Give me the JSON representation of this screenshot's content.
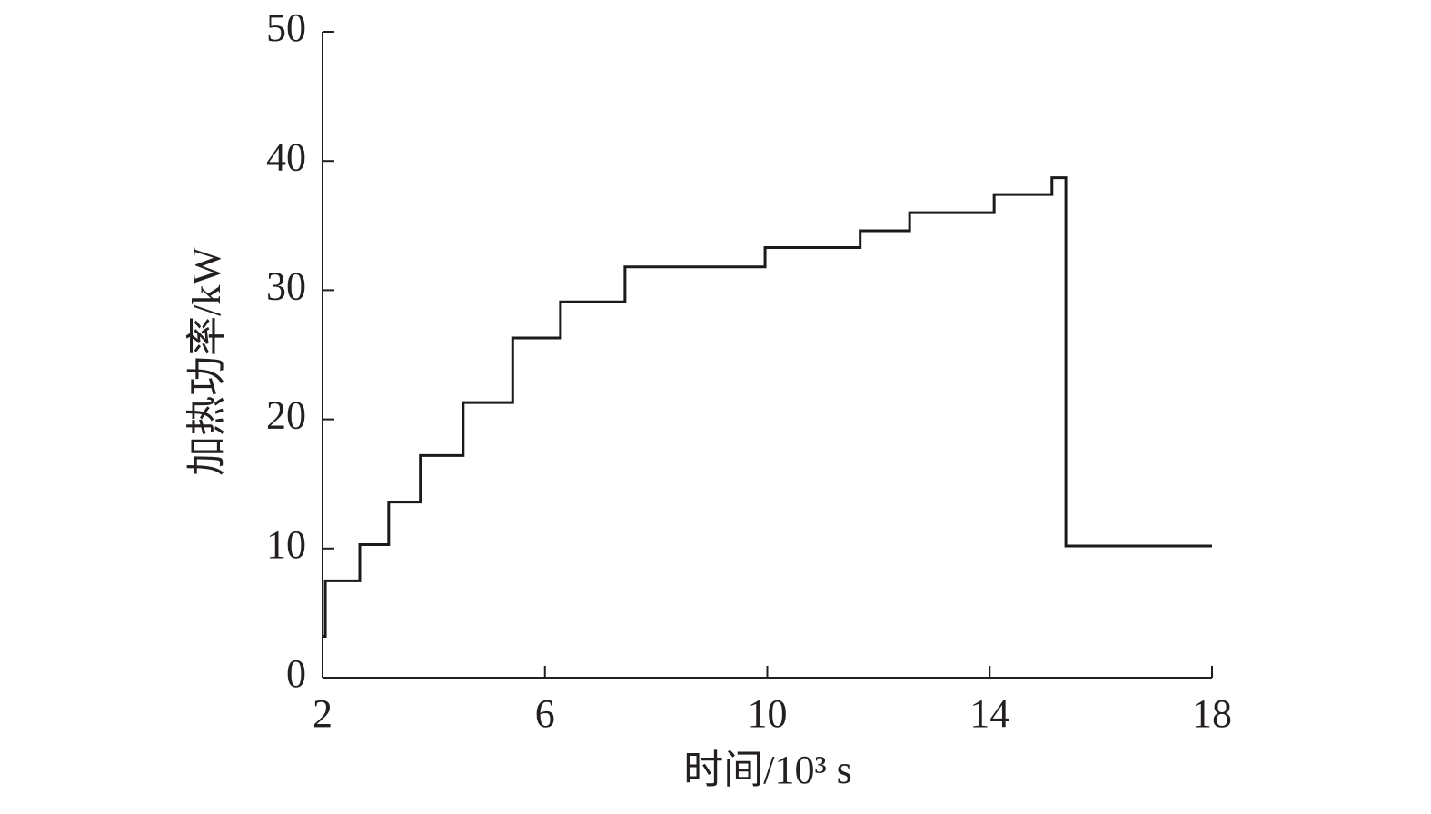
{
  "chart_data": {
    "type": "line",
    "x_label": "时间/10³ s",
    "y_label": "加热功率/kW",
    "xlim": [
      2,
      18
    ],
    "xticks": [
      2,
      6,
      10,
      14,
      18
    ],
    "ylim": [
      0,
      50
    ],
    "yticks": [
      0,
      10,
      20,
      30,
      40,
      50
    ],
    "series": [
      {
        "color": "#1a1a1a",
        "x": [
          2,
          2.05,
          2.05,
          2.67,
          2.67,
          3.19,
          3.19,
          3.76,
          3.76,
          4.53,
          4.53,
          5.42,
          5.42,
          6.28,
          6.28,
          7.44,
          7.44,
          9.96,
          9.96,
          11.67,
          11.67,
          12.56,
          12.56,
          14.08,
          14.08,
          15.12,
          15.12,
          15.37,
          15.37,
          18
        ],
        "values": [
          3.2,
          3.2,
          7.5,
          7.5,
          10.3,
          10.3,
          13.6,
          13.6,
          17.2,
          17.2,
          21.3,
          21.3,
          26.3,
          26.3,
          29.1,
          29.1,
          31.8,
          31.8,
          33.3,
          33.3,
          34.6,
          34.6,
          36.0,
          36.0,
          37.4,
          37.4,
          38.7,
          38.7,
          10.2,
          10.2
        ]
      }
    ]
  }
}
